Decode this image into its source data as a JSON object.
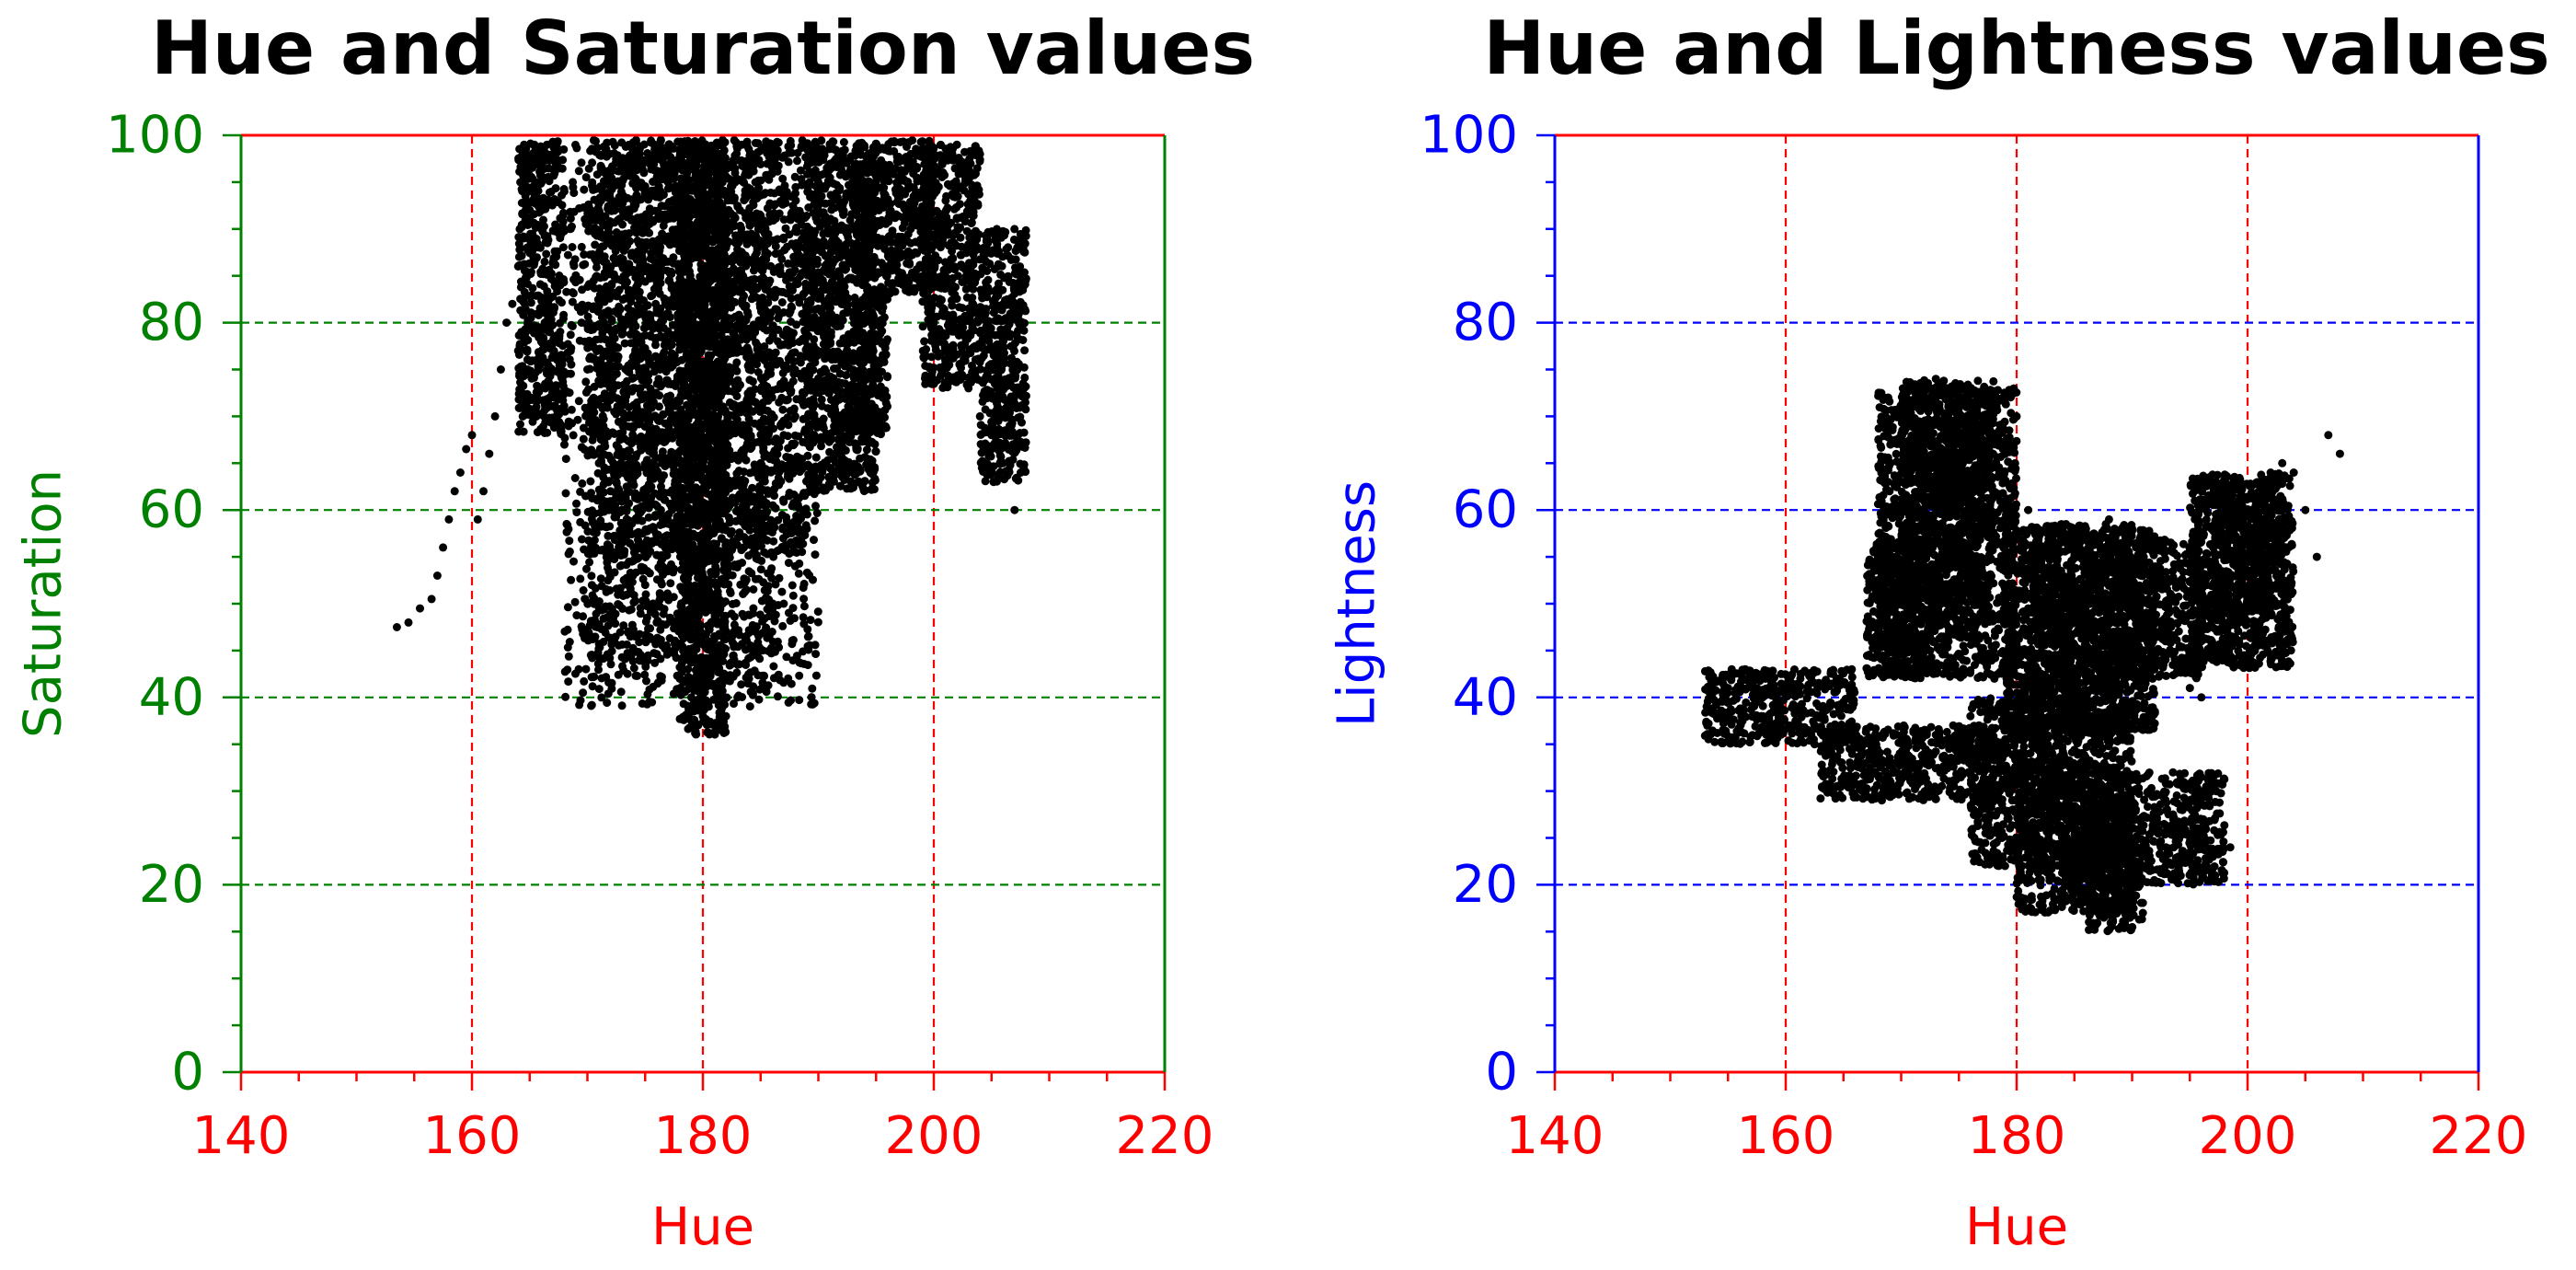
{
  "chart_data": [
    {
      "type": "scatter",
      "title": "Hue and Saturation values",
      "xlabel": "Hue",
      "ylabel": "Saturation",
      "xlim": [
        140,
        220
      ],
      "ylim": [
        0,
        100
      ],
      "xticks": [
        "140",
        "160",
        "180",
        "200",
        "220"
      ],
      "yticks": [
        "0",
        "20",
        "40",
        "60",
        "80",
        "100"
      ],
      "x_grid_values": [
        160,
        180,
        200
      ],
      "y_grid_values": [
        20,
        40,
        60,
        80
      ],
      "x_axis_color": "#ff0000",
      "y_axis_color": "#008000",
      "point_color": "#000000",
      "series": [
        {
          "points": [
            [
              153.5,
              47.5
            ],
            [
              154.5,
              48
            ],
            [
              155.5,
              49.5
            ],
            [
              156.5,
              50.5
            ],
            [
              157,
              53
            ],
            [
              157.5,
              56
            ],
            [
              158,
              59
            ],
            [
              158.5,
              62
            ],
            [
              159,
              64
            ],
            [
              159.5,
              66.5
            ],
            [
              160,
              68
            ],
            [
              160.5,
              59
            ],
            [
              161,
              62
            ],
            [
              161.5,
              66
            ],
            [
              162,
              70
            ],
            [
              162.5,
              75
            ],
            [
              163,
              80
            ],
            [
              163.5,
              82
            ],
            [
              164,
              86
            ],
            [
              164.5,
              89
            ],
            [
              165,
              92
            ],
            [
              165.5,
              95
            ],
            [
              166,
              98
            ],
            [
              166.5,
              99
            ],
            [
              167,
              99.3
            ],
            [
              167.5,
              98.5
            ],
            [
              168,
              94
            ],
            [
              168.5,
              90
            ],
            [
              169,
              85
            ],
            [
              169.5,
              80
            ],
            [
              170,
              75
            ],
            [
              170.5,
              68
            ],
            [
              171,
              65
            ],
            [
              172,
              62
            ],
            [
              173,
              60
            ],
            [
              174,
              56
            ],
            [
              175,
              52
            ],
            [
              176,
              48
            ],
            [
              177,
              45
            ],
            [
              178,
              42
            ],
            [
              179,
              40
            ],
            [
              180,
              38
            ],
            [
              181,
              37
            ],
            [
              182,
              38
            ],
            [
              183,
              40
            ],
            [
              184,
              42
            ],
            [
              185,
              45
            ],
            [
              186,
              47
            ],
            [
              187,
              50
            ],
            [
              188,
              54
            ],
            [
              189,
              58
            ],
            [
              190,
              63
            ],
            [
              191,
              68
            ],
            [
              192,
              72
            ],
            [
              193,
              76
            ],
            [
              194,
              78
            ],
            [
              195,
              82
            ],
            [
              196,
              86
            ],
            [
              197,
              88
            ],
            [
              198,
              90
            ],
            [
              199,
              92
            ],
            [
              200,
              80
            ],
            [
              201,
              76
            ],
            [
              202,
              74
            ],
            [
              203,
              73
            ],
            [
              204,
              70
            ],
            [
              205,
              68
            ],
            [
              206,
              65
            ],
            [
              207,
              60
            ],
            [
              176,
              95
            ],
            [
              178,
              90
            ],
            [
              180,
              85
            ],
            [
              182,
              80
            ],
            [
              184,
              75
            ],
            [
              186,
              72
            ],
            [
              188,
              70
            ],
            [
              190,
              95
            ],
            [
              194,
              97
            ],
            [
              198,
              98
            ],
            [
              202,
              99
            ],
            [
              204,
              98
            ],
            [
              175,
              70
            ],
            [
              177,
              65
            ],
            [
              179,
              55
            ],
            [
              181,
              50
            ],
            [
              183,
              60
            ],
            [
              185,
              65
            ],
            [
              187,
              68
            ],
            [
              172,
              75
            ],
            [
              174,
              80
            ],
            [
              176,
              85
            ],
            [
              178,
              88
            ]
          ],
          "regions": [
            {
              "hue": [
                168,
                190
              ],
              "sat": [
                39,
                99.5
              ]
            },
            {
              "hue": [
                170,
                186
              ],
              "sat": [
                42,
                99.5
              ]
            },
            {
              "hue": [
                171,
                189
              ],
              "sat": [
                55,
                99.5
              ]
            },
            {
              "hue": [
                178,
                182
              ],
              "sat": [
                36,
                99.5
              ]
            },
            {
              "hue": [
                189,
                195
              ],
              "sat": [
                62,
                99.5
              ]
            },
            {
              "hue": [
                193,
                196
              ],
              "sat": [
                68,
                99
              ]
            },
            {
              "hue": [
                196,
                200
              ],
              "sat": [
                83,
                99.5
              ]
            },
            {
              "hue": [
                199,
                204
              ],
              "sat": [
                73,
                99
              ]
            },
            {
              "hue": [
                204,
                208
              ],
              "sat": [
                63,
                90
              ]
            },
            {
              "hue": [
                164,
                168
              ],
              "sat": [
                68,
                99.5
              ]
            }
          ]
        }
      ]
    },
    {
      "type": "scatter",
      "title": "Hue and Lightness values",
      "xlabel": "Hue",
      "ylabel": "Lightness",
      "xlim": [
        140,
        220
      ],
      "ylim": [
        0,
        100
      ],
      "xticks": [
        "140",
        "160",
        "180",
        "200",
        "220"
      ],
      "yticks": [
        "0",
        "20",
        "40",
        "60",
        "80",
        "100"
      ],
      "x_grid_values": [
        160,
        180,
        200
      ],
      "y_grid_values": [
        20,
        40,
        60,
        80
      ],
      "x_axis_color": "#ff0000",
      "y_axis_color": "#0000ff",
      "point_color": "#000000",
      "series": [
        {
          "points": [
            [
              153.5,
              40.5
            ],
            [
              155,
              41
            ],
            [
              156.5,
              43
            ],
            [
              158,
              40
            ],
            [
              159.5,
              39
            ],
            [
              161,
              37
            ],
            [
              162.5,
              35
            ],
            [
              164,
              30
            ],
            [
              165.5,
              31
            ],
            [
              167,
              32
            ],
            [
              168.5,
              33
            ],
            [
              170,
              34
            ],
            [
              171.5,
              35
            ],
            [
              173,
              36
            ],
            [
              174.5,
              37
            ],
            [
              176,
              38
            ],
            [
              177.5,
              27
            ],
            [
              179,
              22
            ],
            [
              180.5,
              25
            ],
            [
              182,
              30
            ],
            [
              183.5,
              27
            ],
            [
              185,
              22
            ],
            [
              186.5,
              19
            ],
            [
              188,
              17
            ],
            [
              189.5,
              20
            ],
            [
              191,
              22
            ],
            [
              192.5,
              24
            ],
            [
              194,
              23
            ],
            [
              195.5,
              22
            ],
            [
              197,
              23
            ],
            [
              198.5,
              24
            ],
            [
              168,
              55
            ],
            [
              169,
              62
            ],
            [
              170,
              67
            ],
            [
              171,
              71
            ],
            [
              172,
              73
            ],
            [
              173,
              74
            ],
            [
              174,
              73
            ],
            [
              175,
              72
            ],
            [
              176,
              71
            ],
            [
              177,
              70
            ],
            [
              178,
              71
            ],
            [
              179,
              72
            ],
            [
              180,
              70
            ],
            [
              181,
              60
            ],
            [
              182,
              56
            ],
            [
              184,
              57
            ],
            [
              186,
              58
            ],
            [
              188,
              59
            ],
            [
              190,
              58
            ],
            [
              191,
              55
            ],
            [
              192,
              52
            ],
            [
              193,
              48
            ],
            [
              194,
              44
            ],
            [
              195,
              41
            ],
            [
              196,
              40
            ],
            [
              197,
              44
            ],
            [
              198,
              50
            ],
            [
              199,
              55
            ],
            [
              200,
              60
            ],
            [
              201,
              63
            ],
            [
              202,
              64
            ],
            [
              203,
              65
            ],
            [
              204,
              64
            ],
            [
              205,
              60
            ],
            [
              206,
              55
            ],
            [
              207,
              68
            ],
            [
              208,
              66
            ],
            [
              185,
              40
            ],
            [
              187,
              35
            ],
            [
              189,
              38
            ],
            [
              184,
              45
            ],
            [
              186,
              48
            ],
            [
              175,
              50
            ],
            [
              178,
              45
            ],
            [
              182,
              42
            ]
          ],
          "regions": [
            {
              "hue": [
                168,
                180
              ],
              "sat": [
                42,
                73
              ]
            },
            {
              "hue": [
                170,
                178
              ],
              "sat": [
                48,
                74
              ]
            },
            {
              "hue": [
                167,
                172
              ],
              "sat": [
                42,
                57
              ]
            },
            {
              "hue": [
                179,
                192
              ],
              "sat": [
                36,
                58
              ]
            },
            {
              "hue": [
                181,
                190
              ],
              "sat": [
                40,
                58.5
              ]
            },
            {
              "hue": [
                190,
                196
              ],
              "sat": [
                42,
                57
              ]
            },
            {
              "hue": [
                195,
                204
              ],
              "sat": [
                43,
                64
              ]
            },
            {
              "hue": [
                197,
                203
              ],
              "sat": [
                49,
                63
              ]
            },
            {
              "hue": [
                153,
                166
              ],
              "sat": [
                35,
                43
              ]
            },
            {
              "hue": [
                163,
                178
              ],
              "sat": [
                29,
                37
              ]
            },
            {
              "hue": [
                176,
                183
              ],
              "sat": [
                22,
                40
              ]
            },
            {
              "hue": [
                180,
                190
              ],
              "sat": [
                17,
                40
              ]
            },
            {
              "hue": [
                184,
                198
              ],
              "sat": [
                20,
                32
              ]
            },
            {
              "hue": [
                186,
                191
              ],
              "sat": [
                15,
                26
              ]
            }
          ]
        }
      ]
    }
  ]
}
